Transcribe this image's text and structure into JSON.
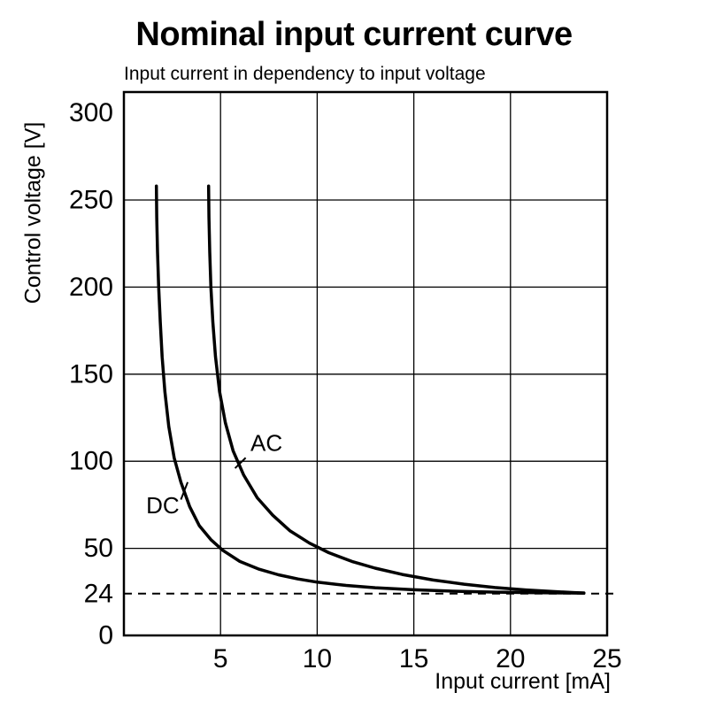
{
  "header": {
    "title": "Nominal input current curve",
    "subtitle": "Input current in dependency to input voltage"
  },
  "chart_data": {
    "type": "line",
    "title": "Nominal input current curve",
    "subtitle": "Input current in dependency to input voltage",
    "xlabel": "Input current [mA]",
    "ylabel": "Control voltage [V]",
    "xlim": [
      0,
      25
    ],
    "ylim": [
      0,
      312
    ],
    "x_ticks": [
      5,
      10,
      15,
      20,
      25
    ],
    "y_ticks": [
      0,
      24,
      50,
      100,
      150,
      200,
      250,
      300
    ],
    "grid_x": [
      5,
      10,
      15,
      20,
      25
    ],
    "grid_y": [
      50,
      100,
      150,
      200,
      250
    ],
    "grid_on": true,
    "legend_position": "inline-labels",
    "reference_line": {
      "y": 24,
      "style": "dashed"
    },
    "colors": {
      "curve": "#000000",
      "grid": "#000000",
      "axis": "#000000",
      "background": "#ffffff"
    },
    "series": [
      {
        "name": "DC",
        "points": [
          [
            1.68,
            258
          ],
          [
            1.7,
            240
          ],
          [
            1.74,
            220
          ],
          [
            1.8,
            200
          ],
          [
            1.88,
            180
          ],
          [
            1.98,
            160
          ],
          [
            2.12,
            140
          ],
          [
            2.32,
            120
          ],
          [
            2.6,
            102
          ],
          [
            2.95,
            88
          ],
          [
            3.4,
            74
          ],
          [
            3.9,
            63
          ],
          [
            4.5,
            55
          ],
          [
            5.1,
            49
          ],
          [
            6.0,
            42.5
          ],
          [
            7.0,
            38
          ],
          [
            8.0,
            34.8
          ],
          [
            9.0,
            32.4
          ],
          [
            10.0,
            30.6
          ],
          [
            11.5,
            28.7
          ],
          [
            13.0,
            27.4
          ],
          [
            15.0,
            26.2
          ],
          [
            17.0,
            25.4
          ],
          [
            19.0,
            24.9
          ],
          [
            21.0,
            24.6
          ],
          [
            23.0,
            24.4
          ],
          [
            23.8,
            24.3
          ]
        ]
      },
      {
        "name": "AC",
        "points": [
          [
            4.38,
            258
          ],
          [
            4.4,
            240
          ],
          [
            4.44,
            220
          ],
          [
            4.5,
            200
          ],
          [
            4.6,
            180
          ],
          [
            4.74,
            160
          ],
          [
            4.95,
            140
          ],
          [
            5.25,
            122
          ],
          [
            5.65,
            106
          ],
          [
            6.2,
            92
          ],
          [
            6.9,
            79
          ],
          [
            7.7,
            69
          ],
          [
            8.6,
            60
          ],
          [
            9.6,
            53
          ],
          [
            10.6,
            47.5
          ],
          [
            11.8,
            42.5
          ],
          [
            13.0,
            38.6
          ],
          [
            14.4,
            35
          ],
          [
            16.0,
            31.8
          ],
          [
            17.6,
            29.4
          ],
          [
            19.2,
            27.5
          ],
          [
            20.8,
            26.1
          ],
          [
            22.2,
            25.2
          ],
          [
            23.3,
            24.6
          ],
          [
            23.8,
            24.4
          ]
        ]
      }
    ],
    "series_labels": [
      {
        "text": "DC",
        "x": 1.15,
        "y": 70,
        "leader": [
          [
            2.95,
            78
          ],
          [
            3.3,
            88
          ]
        ]
      },
      {
        "text": "AC",
        "x": 6.55,
        "y": 106,
        "leader": [
          [
            6.3,
            102
          ],
          [
            5.75,
            96
          ]
        ]
      }
    ]
  }
}
